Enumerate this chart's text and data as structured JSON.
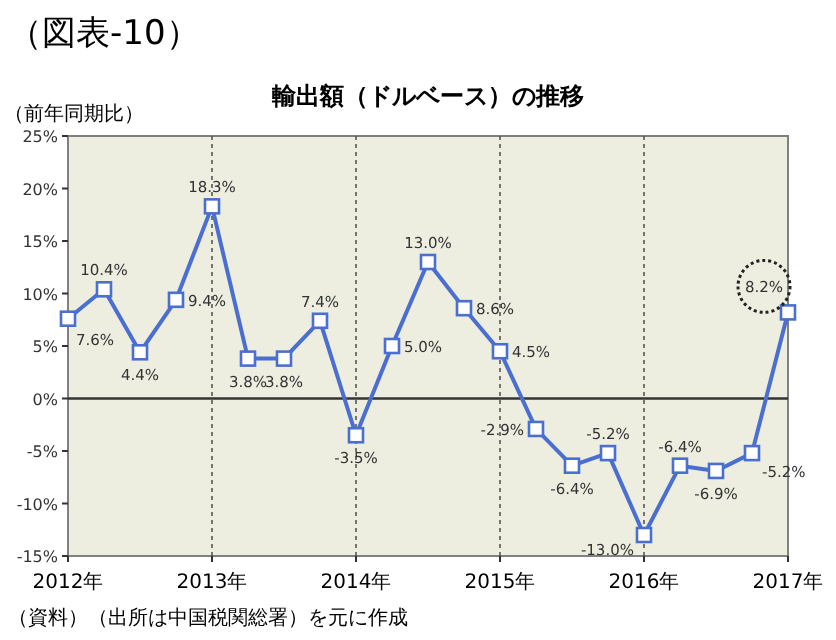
{
  "chart_data": {
    "type": "line",
    "title": "（図表-10）",
    "subtitle": "輸出額（ドルベース）の推移",
    "ylabel": "（前年同期比）",
    "x": [
      2012,
      2012.25,
      2012.5,
      2012.75,
      2013,
      2013.25,
      2013.5,
      2013.75,
      2014,
      2014.25,
      2014.5,
      2014.75,
      2015,
      2015.25,
      2015.5,
      2015.75,
      2016,
      2016.25,
      2016.5,
      2016.75,
      2017
    ],
    "series": [
      {
        "color": "#4a6fd0",
        "values": [
          7.6,
          10.4,
          4.4,
          9.4,
          18.3,
          3.8,
          3.8,
          7.4,
          -3.5,
          5.0,
          13.0,
          8.6,
          4.5,
          -2.9,
          -6.4,
          -5.2,
          -13.0,
          -6.4,
          -6.9,
          -5.2,
          8.2
        ],
        "value_labels": [
          "7.6%",
          "10.4%",
          "4.4%",
          "9.4%",
          "18.3%",
          "3.8%",
          "3.8%",
          "7.4%",
          "-3.5%",
          "5.0%",
          "13.0%",
          "8.6%",
          "4.5%",
          "-2.9%",
          "-6.4%",
          "-5.2%",
          "-13.0%",
          "-6.4%",
          "-6.9%",
          "-5.2%",
          "8.2%"
        ]
      }
    ],
    "xlim": [
      2012,
      2017
    ],
    "xticks": [
      {
        "value": 2012,
        "label": "2012年"
      },
      {
        "value": 2013,
        "label": "2013年"
      },
      {
        "value": 2014,
        "label": "2014年"
      },
      {
        "value": 2015,
        "label": "2015年"
      },
      {
        "value": 2016,
        "label": "2016年"
      },
      {
        "value": 2017,
        "label": "2017年"
      }
    ],
    "ylim": [
      -15,
      25
    ],
    "yticks": [
      {
        "value": 25,
        "label": "25%"
      },
      {
        "value": 20,
        "label": "20%"
      },
      {
        "value": 15,
        "label": "15%"
      },
      {
        "value": 10,
        "label": "10%"
      },
      {
        "value": 5,
        "label": "5%"
      },
      {
        "value": 0,
        "label": "0%"
      },
      {
        "value": -5,
        "label": "-5%"
      },
      {
        "value": -10,
        "label": "-10%"
      },
      {
        "value": -15,
        "label": "-15%"
      }
    ],
    "grid": "x",
    "marker": "square",
    "line_style": "solid",
    "annotations": [
      "（資料）（出所は中国税関総署）を元に作成"
    ]
  }
}
